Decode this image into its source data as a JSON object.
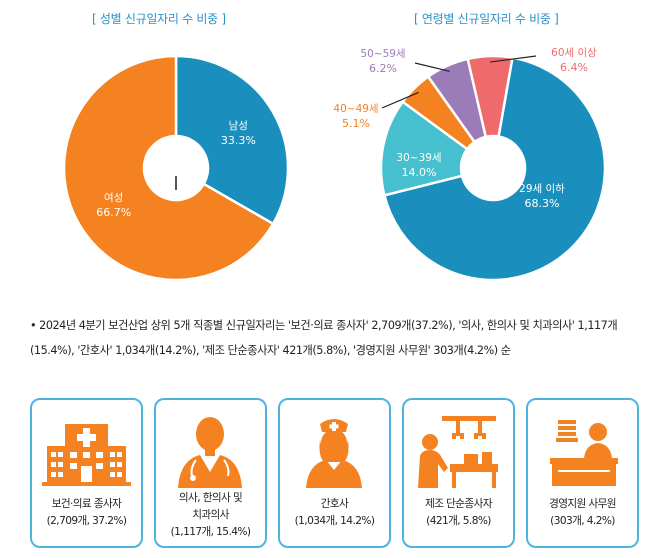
{
  "colors": {
    "title": "#2a93c9",
    "blue": "#1a8fbe",
    "orange": "#f58220",
    "cyan": "#46bfcf",
    "purple": "#9b7cb9",
    "red": "#ef6b6b",
    "card_border": "#4eb3e0",
    "icon_orange": "#f58220"
  },
  "chart_data": [
    {
      "type": "pie",
      "title": "[ 성별 신규일자리 수 비중 ]",
      "slices": [
        {
          "label": "남성",
          "value": 33.3,
          "value_label": "33.3%",
          "color": "#1a8fbe"
        },
        {
          "label": "여성",
          "value": 66.7,
          "value_label": "66.7%",
          "color": "#f58220"
        }
      ]
    },
    {
      "type": "pie",
      "title": "[ 연령별 신규일자리 수 비중 ]",
      "slices": [
        {
          "label": "29세 이하",
          "value": 68.3,
          "value_label": "68.3%",
          "color": "#1a8fbe"
        },
        {
          "label": "30~39세",
          "value": 14.0,
          "value_label": "14.0%",
          "color": "#46bfcf"
        },
        {
          "label": "40~49세",
          "value": 5.1,
          "value_label": "5.1%",
          "color": "#f58220"
        },
        {
          "label": "50~59세",
          "value": 6.2,
          "value_label": "6.2%",
          "color": "#9b7cb9"
        },
        {
          "label": "60세 이상",
          "value": 6.4,
          "value_label": "6.4%",
          "color": "#ef6b6b"
        }
      ]
    }
  ],
  "description": {
    "bullet": "•",
    "text": "2024년 4분기 보건산업 상위 5개 직종별 신규일자리는 '보건·의료 종사자' 2,709개(37.2%), '의사, 한의사 및 치과의사' 1,117개(15.4%), '간호사' 1,034개(14.2%), '제조 단순종사자' 421개(5.8%), '경영지원 사무원' 303개(4.2%) 순"
  },
  "cards": [
    {
      "icon": "hospital-icon",
      "line1": "보건·의료 종사자",
      "line2": "(2,709개, 37.2%)"
    },
    {
      "icon": "doctor-icon",
      "line1": "의사, 한의사 및",
      "line2": "치과의사",
      "line3": "(1,117개, 15.4%)"
    },
    {
      "icon": "nurse-icon",
      "line1": "간호사",
      "line2": "(1,034개, 14.2%)"
    },
    {
      "icon": "factory-worker-icon",
      "line1": "제조 단순종사자",
      "line2": "(421개, 5.8%)"
    },
    {
      "icon": "office-clerk-icon",
      "line1": "경영지원 사무원",
      "line2": "(303개, 4.2%)"
    }
  ]
}
